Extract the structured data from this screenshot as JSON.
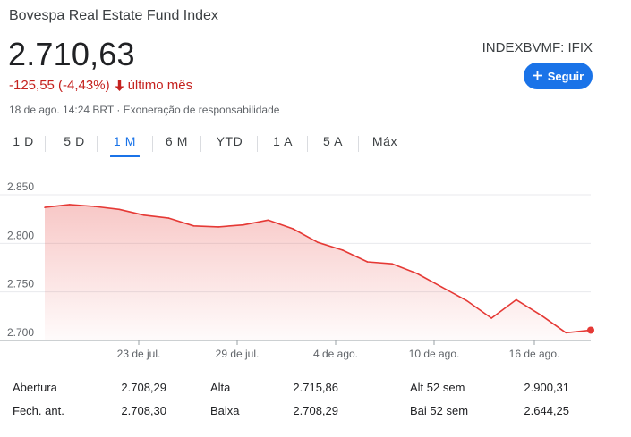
{
  "header": {
    "title": "Bovespa Real Estate Fund Index",
    "price": "2.710,63",
    "change": "-125,55 (-4,43%)",
    "period": "último mês",
    "timestamp": "18 de ago. 14:24 BRT · Exoneração de responsabilidade",
    "ticker": "INDEXBVMF: IFIX",
    "follow_label": "Seguir"
  },
  "colors": {
    "negative": "#c5221f",
    "line": "#e53935",
    "accent": "#1a73e8"
  },
  "tabs": [
    {
      "label": "1 D",
      "active": false
    },
    {
      "label": "5 D",
      "active": false
    },
    {
      "label": "1 M",
      "active": true
    },
    {
      "label": "6 M",
      "active": false
    },
    {
      "label": "YTD",
      "active": false
    },
    {
      "label": "1 A",
      "active": false
    },
    {
      "label": "5 A",
      "active": false
    },
    {
      "label": "Máx",
      "active": false
    }
  ],
  "chart_data": {
    "type": "area",
    "x": [
      "19/07",
      "20/07",
      "21/07",
      "22/07",
      "23/07",
      "26/07",
      "27/07",
      "28/07",
      "29/07",
      "30/07",
      "02/08",
      "03/08",
      "04/08",
      "05/08",
      "06/08",
      "09/08",
      "10/08",
      "11/08",
      "12/08",
      "13/08",
      "16/08",
      "17/08",
      "18/08"
    ],
    "values": [
      2837,
      2840,
      2838,
      2835,
      2829,
      2826,
      2818,
      2817,
      2819,
      2824,
      2815,
      2801,
      2793,
      2781,
      2779,
      2769,
      2755,
      2741,
      2723,
      2742,
      2726,
      2708,
      2710.63
    ],
    "ylim": [
      2700,
      2850
    ],
    "y_ticks": [
      "2.850",
      "2.800",
      "2.750",
      "2.700"
    ],
    "x_tick_labels": [
      "23 de jul.",
      "29 de jul.",
      "4 de ago.",
      "10 de ago.",
      "16 de ago."
    ],
    "grid": true
  },
  "stats": [
    {
      "label": "Abertura",
      "value": "2.708,29"
    },
    {
      "label": "Alta",
      "value": "2.715,86"
    },
    {
      "label": "Alt 52 sem",
      "value": "2.900,31"
    },
    {
      "label": "Fech. ant.",
      "value": "2.708,30"
    },
    {
      "label": "Baixa",
      "value": "2.708,29"
    },
    {
      "label": "Bai 52 sem",
      "value": "2.644,25"
    }
  ]
}
